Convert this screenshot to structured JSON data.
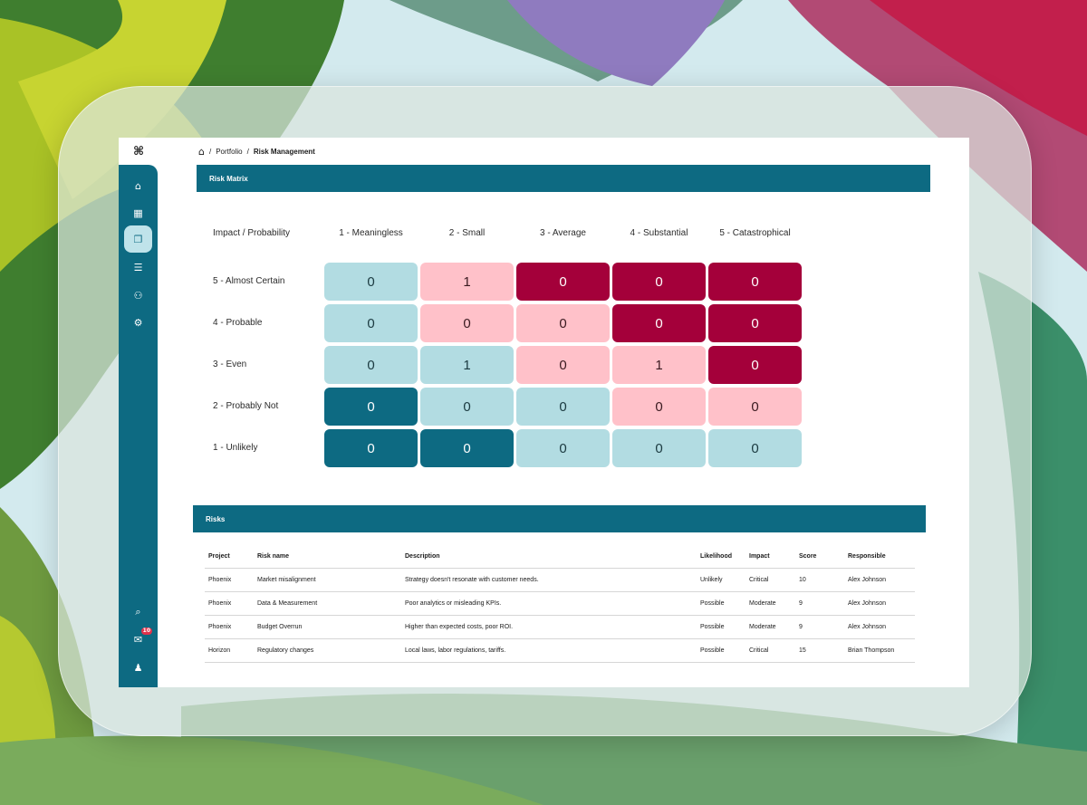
{
  "app": {
    "logo": "⌘",
    "breadcrumb": {
      "home_icon": "home-icon",
      "sep1": "/",
      "portfolio": "Portfolio",
      "sep2": "/",
      "current": "Risk Management"
    }
  },
  "sidebar": {
    "items": [
      {
        "name": "home",
        "icon": "⌂"
      },
      {
        "name": "dashboard",
        "icon": "▦"
      },
      {
        "name": "portfolio",
        "icon": "❐"
      },
      {
        "name": "reports",
        "icon": "☰"
      },
      {
        "name": "team",
        "icon": "⚇"
      },
      {
        "name": "settings",
        "icon": "⚙"
      }
    ],
    "bottom": [
      {
        "name": "search",
        "icon": "⌕"
      },
      {
        "name": "inbox",
        "icon": "✉",
        "badge": "10"
      },
      {
        "name": "profile",
        "icon": "♟"
      }
    ]
  },
  "matrix": {
    "title": "Risk Matrix",
    "corner_label": "Impact / Probability",
    "columns": [
      "1 - Meaningless",
      "2 - Small",
      "3 - Average",
      "4 - Substantial",
      "5 - Catastrophical"
    ],
    "rows": [
      {
        "label": "5 - Almost Certain",
        "values": [
          "0",
          "1",
          "0",
          "0",
          "0"
        ],
        "levels": [
          0,
          1,
          2,
          2,
          2
        ]
      },
      {
        "label": "4 - Probable",
        "values": [
          "0",
          "0",
          "0",
          "0",
          "0"
        ],
        "levels": [
          0,
          1,
          1,
          2,
          2
        ]
      },
      {
        "label": "3 - Even",
        "values": [
          "0",
          "1",
          "0",
          "1",
          "0"
        ],
        "levels": [
          0,
          0,
          1,
          1,
          2
        ]
      },
      {
        "label": "2 - Probably Not",
        "values": [
          "0",
          "0",
          "0",
          "0",
          "0"
        ],
        "levels": [
          3,
          0,
          0,
          1,
          1
        ]
      },
      {
        "label": "1 - Unlikely",
        "values": [
          "0",
          "0",
          "0",
          "0",
          "0"
        ],
        "levels": [
          3,
          3,
          0,
          0,
          0
        ]
      }
    ],
    "level_colors": {
      "low": "#b2dce2",
      "medium": "#ffc1c9",
      "high": "#a4003a",
      "very_low": "#0d6a82"
    }
  },
  "risks": {
    "title": "Risks",
    "headers": [
      "Project",
      "Risk name",
      "Description",
      "Likelihood",
      "Impact",
      "Score",
      "Responsible"
    ],
    "rows": [
      [
        "Phoenix",
        "Market misalignment",
        "Strategy doesn't resonate with customer needs.",
        "Unlikely",
        "Critical",
        "10",
        "Alex Johnson"
      ],
      [
        "Phoenix",
        "Data & Measurement",
        "Poor analytics or misleading KPIs.",
        "Possible",
        "Moderate",
        "9",
        "Alex Johnson"
      ],
      [
        "Phoenix",
        "Budget Overrun",
        "Higher than expected costs, poor ROI.",
        "Possible",
        "Moderate",
        "9",
        "Alex Johnson"
      ],
      [
        "Horizon",
        "Regulatory changes",
        "Local laws, labor regulations, tariffs.",
        "Possible",
        "Critical",
        "15",
        "Brian Thompson"
      ]
    ]
  },
  "colors": {
    "accent": "#0d6a82",
    "frame": "#dae4de"
  }
}
